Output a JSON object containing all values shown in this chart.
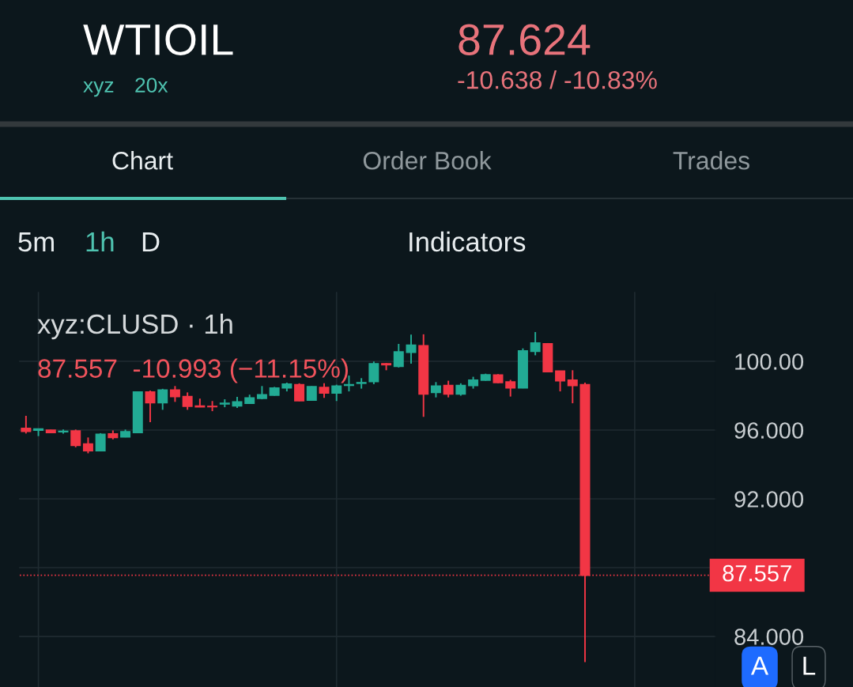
{
  "chart_data": {
    "type": "candlestick",
    "title": "WTIOIL",
    "categories": [
      null,
      null,
      null,
      null,
      null,
      null,
      null,
      null,
      null,
      null,
      null,
      null,
      null,
      null,
      null,
      null,
      null,
      null,
      null,
      null,
      null,
      null,
      null,
      null,
      null,
      null,
      null,
      null,
      null,
      null,
      null,
      null,
      null,
      null,
      null,
      null,
      null,
      null,
      null,
      null,
      null,
      null,
      null,
      null,
      null,
      null,
      null,
      null,
      null,
      null,
      null,
      null,
      null,
      null,
      null,
      null
    ],
    "ohlc": [
      [
        96.1,
        96.83,
        95.8,
        95.92
      ],
      [
        95.99,
        96.08,
        95.65,
        96.07
      ],
      [
        96.0,
        96.02,
        95.83,
        95.85
      ],
      [
        95.9,
        96.03,
        95.79,
        95.93
      ],
      [
        95.95,
        96.03,
        95.0,
        95.11
      ],
      [
        95.19,
        95.57,
        94.65,
        94.8
      ],
      [
        94.8,
        95.82,
        94.77,
        95.76
      ],
      [
        95.78,
        95.98,
        95.46,
        95.57
      ],
      [
        95.6,
        96.03,
        95.58,
        95.91
      ],
      [
        95.85,
        98.25,
        95.83,
        98.21
      ],
      [
        98.22,
        98.3,
        96.46,
        97.59
      ],
      [
        97.59,
        98.4,
        97.18,
        98.33
      ],
      [
        98.33,
        98.56,
        97.64,
        97.95
      ],
      [
        97.95,
        98.19,
        97.18,
        97.38
      ],
      [
        97.4,
        97.83,
        97.33,
        97.35
      ],
      [
        97.38,
        97.69,
        97.1,
        97.36
      ],
      [
        97.52,
        97.79,
        97.33,
        97.56
      ],
      [
        97.41,
        97.93,
        97.29,
        97.64
      ],
      [
        97.56,
        98.06,
        97.53,
        97.87
      ],
      [
        97.84,
        98.56,
        97.79,
        98.06
      ],
      [
        98.03,
        98.51,
        98.0,
        98.44
      ],
      [
        98.45,
        98.76,
        98.25,
        98.67
      ],
      [
        98.64,
        98.72,
        97.68,
        97.71
      ],
      [
        97.74,
        98.55,
        97.71,
        98.52
      ],
      [
        98.48,
        98.72,
        97.87,
        98.15
      ],
      [
        98.15,
        98.64,
        97.69,
        98.56
      ],
      [
        98.6,
        99.17,
        98.25,
        98.64
      ],
      [
        98.72,
        99.02,
        98.41,
        98.76
      ],
      [
        98.82,
        99.99,
        98.67,
        99.86
      ],
      [
        99.86,
        99.9,
        99.48,
        99.8
      ],
      [
        99.71,
        101.01,
        99.64,
        100.55
      ],
      [
        100.52,
        101.55,
        99.86,
        100.94
      ],
      [
        100.9,
        101.57,
        96.77,
        98.1
      ],
      [
        98.19,
        98.79,
        97.9,
        98.56
      ],
      [
        98.6,
        98.87,
        97.9,
        98.1
      ],
      [
        98.1,
        98.72,
        98.0,
        98.6
      ],
      [
        98.59,
        99.1,
        98.41,
        98.9
      ],
      [
        98.9,
        99.28,
        98.87,
        99.22
      ],
      [
        99.2,
        99.25,
        98.72,
        98.76
      ],
      [
        98.8,
        98.92,
        97.95,
        98.45
      ],
      [
        98.45,
        100.75,
        98.43,
        100.6
      ],
      [
        100.58,
        101.7,
        100.35,
        101.06
      ],
      [
        101.02,
        101.06,
        99.4,
        99.4
      ],
      [
        99.43,
        99.45,
        98.25,
        98.87
      ],
      [
        98.91,
        99.48,
        97.56,
        98.59
      ],
      [
        98.64,
        98.76,
        82.51,
        87.557
      ],
      null,
      null,
      null,
      null,
      null,
      null,
      null,
      null,
      null,
      null
    ],
    "colors": [
      "#f23645",
      "#22ab94",
      "#f23645",
      "#22ab94",
      "#f23645",
      "#f23645",
      "#22ab94",
      "#f23645",
      "#22ab94",
      "#22ab94",
      "#f23645",
      "#22ab94",
      "#f23645",
      "#f23645",
      "#f23645",
      "#f23645",
      "#22ab94",
      "#22ab94",
      "#22ab94",
      "#22ab94",
      "#22ab94",
      "#22ab94",
      "#f23645",
      "#22ab94",
      "#f23645",
      "#22ab94",
      "#22ab94",
      "#22ab94",
      "#22ab94",
      "#f23645",
      "#22ab94",
      "#22ab94",
      "#f23645",
      "#22ab94",
      "#f23645",
      "#22ab94",
      "#22ab94",
      "#22ab94",
      "#f23645",
      "#f23645",
      "#22ab94",
      "#22ab94",
      "#f23645",
      "#f23645",
      "#f23645",
      "#f23645",
      null,
      null,
      null,
      null,
      null,
      null,
      null,
      null,
      null,
      null
    ],
    "ylim": [
      81.06,
      104.0
    ],
    "yticks": [
      {
        "value": 84,
        "label": "84.000"
      },
      {
        "value": 88,
        "label": null
      },
      {
        "value": 92,
        "label": "92.000"
      },
      {
        "value": 96,
        "label": "96.000"
      },
      {
        "value": 100,
        "label": "100.00"
      }
    ],
    "tick_labels": "y",
    "grid": true,
    "ref_lines": [
      {
        "axis": "y",
        "value": 87.557,
        "label": "87.557",
        "color": "#f23645",
        "line_style": "dotted"
      }
    ],
    "annotations": [
      "xyz",
      "20x",
      "87.624",
      "-10.638 / -10.83%",
      "Chart",
      "Order Book",
      "Trades",
      "5m",
      "1h",
      "D",
      "Indicators",
      "xyz:CLUSD · 1h",
      "87.557  -10.993 (−11.15%)",
      "A",
      "L"
    ]
  }
}
